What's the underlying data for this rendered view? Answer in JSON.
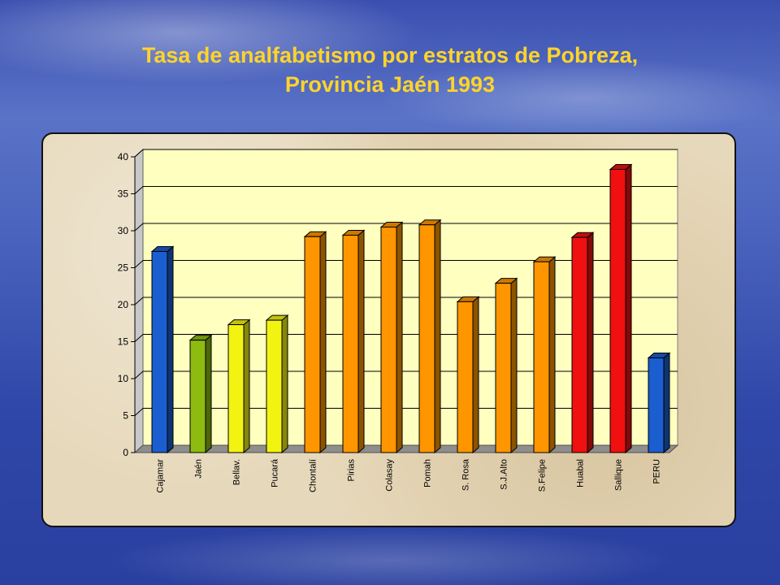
{
  "slide": {
    "title_line1": "Tasa de analfabetismo por estratos de Pobreza,",
    "title_line2": "Provincia Jaén 1993"
  },
  "chart_data": {
    "type": "bar",
    "title": "Tasa de analfabetismo por estratos de Pobreza, Provincia Jaén 1993",
    "xlabel": "",
    "ylabel": "",
    "ylim": [
      0,
      40
    ],
    "yticks": [
      0,
      5,
      10,
      15,
      20,
      25,
      30,
      35,
      40
    ],
    "grid": true,
    "legend": "none",
    "categories": [
      "Cajamar",
      "Jaén",
      "Bellav.",
      "Pucará",
      "Chontalí",
      "Pirias",
      "Colasay",
      "Pomah",
      "S. Rosa",
      "S.J.Alto",
      "S.Felipe",
      "Huabal",
      "Sallique",
      "PERU"
    ],
    "values": [
      27.2,
      15.2,
      17.3,
      17.9,
      29.2,
      29.4,
      30.5,
      30.8,
      20.4,
      22.9,
      25.8,
      29.1,
      38.3,
      12.8
    ],
    "bar_colors": [
      "#1a5ed0",
      "#8dbb10",
      "#f3f312",
      "#f3f312",
      "#ff9600",
      "#ff9600",
      "#ff9600",
      "#ff9600",
      "#ff9600",
      "#ff9600",
      "#ff9600",
      "#f01010",
      "#f01010",
      "#1a5ed0"
    ]
  }
}
